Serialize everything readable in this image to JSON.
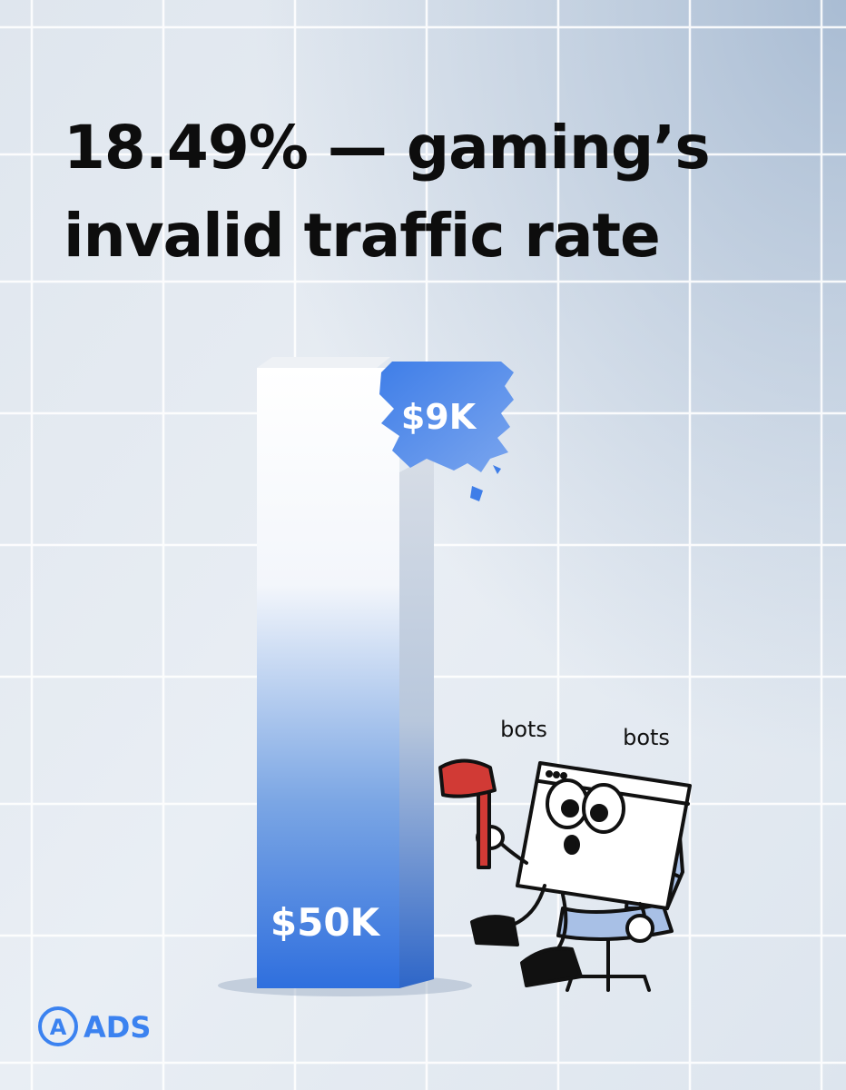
{
  "title": {
    "lines": [
      "18.49% — gaming’s",
      "invalid traffic rate"
    ]
  },
  "bar_label": "$50K",
  "chunk_label": "$9K",
  "annotations": [
    "bots",
    "bots"
  ],
  "logo": {
    "icon": "A",
    "text": "ADS"
  }
}
